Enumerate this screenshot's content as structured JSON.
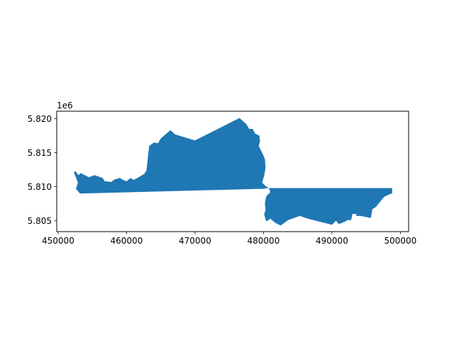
{
  "chart_data": {
    "type": "map",
    "geometry": "polygon",
    "fill_color": "#1f77b4",
    "title": "",
    "xlabel": "",
    "ylabel": "",
    "xlim": [
      449800,
      501200
    ],
    "ylim": [
      5803400,
      5821100
    ],
    "x_ticks": [
      {
        "value": 450000,
        "label": "450000"
      },
      {
        "value": 460000,
        "label": "460000"
      },
      {
        "value": 470000,
        "label": "470000"
      },
      {
        "value": 480000,
        "label": "480000"
      },
      {
        "value": 490000,
        "label": "490000"
      },
      {
        "value": 500000,
        "label": "500000"
      }
    ],
    "y_ticks": [
      {
        "value": 5805000,
        "label": "5.805"
      },
      {
        "value": 5810000,
        "label": "5.810"
      },
      {
        "value": 5815000,
        "label": "5.815"
      },
      {
        "value": 5820000,
        "label": "5.820"
      }
    ],
    "y_offset_label": "1e6",
    "grid": false,
    "polygon": [
      [
        452300,
        5812100
      ],
      [
        452500,
        5812300
      ],
      [
        453000,
        5811700
      ],
      [
        453300,
        5812000
      ],
      [
        454500,
        5811400
      ],
      [
        455300,
        5811700
      ],
      [
        456500,
        5811300
      ],
      [
        456800,
        5810800
      ],
      [
        457800,
        5810700
      ],
      [
        458100,
        5811000
      ],
      [
        459000,
        5811300
      ],
      [
        459500,
        5811000
      ],
      [
        460000,
        5810800
      ],
      [
        460600,
        5811300
      ],
      [
        461000,
        5811000
      ],
      [
        461600,
        5811300
      ],
      [
        462600,
        5811900
      ],
      [
        462900,
        5812400
      ],
      [
        463300,
        5816000
      ],
      [
        464000,
        5816500
      ],
      [
        464600,
        5816400
      ],
      [
        465000,
        5817100
      ],
      [
        466400,
        5818300
      ],
      [
        467100,
        5817700
      ],
      [
        470000,
        5816800
      ],
      [
        476500,
        5820100
      ],
      [
        477500,
        5819200
      ],
      [
        477900,
        5818500
      ],
      [
        478400,
        5818500
      ],
      [
        478800,
        5817800
      ],
      [
        479400,
        5817500
      ],
      [
        479500,
        5816700
      ],
      [
        479300,
        5816000
      ],
      [
        479800,
        5815000
      ],
      [
        480200,
        5814100
      ],
      [
        480300,
        5812800
      ],
      [
        480100,
        5811600
      ],
      [
        479800,
        5810600
      ],
      [
        480300,
        5810100
      ],
      [
        480800,
        5809800
      ],
      [
        481000,
        5809200
      ],
      [
        480400,
        5808600
      ],
      [
        480200,
        5807600
      ],
      [
        480300,
        5806600
      ],
      [
        480100,
        5805900
      ],
      [
        480400,
        5804900
      ],
      [
        481000,
        5805300
      ],
      [
        481700,
        5804700
      ],
      [
        482500,
        5804300
      ],
      [
        483600,
        5805100
      ],
      [
        485300,
        5805700
      ],
      [
        486500,
        5805300
      ],
      [
        490000,
        5804400
      ],
      [
        490600,
        5805000
      ],
      [
        491000,
        5804500
      ],
      [
        492000,
        5804900
      ],
      [
        492200,
        5805100
      ],
      [
        492800,
        5805100
      ],
      [
        493000,
        5806000
      ],
      [
        493600,
        5806000
      ],
      [
        493500,
        5805700
      ],
      [
        494200,
        5805700
      ],
      [
        495700,
        5805400
      ],
      [
        495900,
        5806700
      ],
      [
        496400,
        5807000
      ],
      [
        497600,
        5808500
      ],
      [
        498400,
        5808900
      ],
      [
        498800,
        5809000
      ],
      [
        498800,
        5809800
      ],
      [
        480500,
        5809800
      ],
      [
        480100,
        5809700
      ],
      [
        453200,
        5809000
      ],
      [
        452600,
        5809700
      ],
      [
        452900,
        5810600
      ]
    ]
  }
}
